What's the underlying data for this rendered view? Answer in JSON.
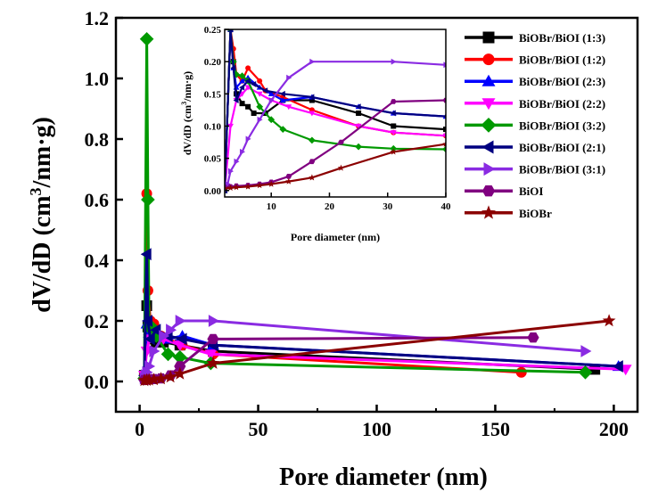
{
  "chart_data": [
    {
      "id": "main",
      "type": "line",
      "xlabel": "Pore diameter (nm)",
      "ylabel_main": "dV/dD (cm",
      "ylabel_sup": "3",
      "ylabel_tail": "/nm·g)",
      "xlim": [
        -10,
        210
      ],
      "ylim": [
        -0.1,
        1.2
      ],
      "xticks": [
        0,
        50,
        100,
        150,
        200
      ],
      "xtick_labels": [
        "0",
        "50",
        "100",
        "150",
        "200"
      ],
      "yticks": [
        0.0,
        0.2,
        0.4,
        0.6,
        0.8,
        1.0,
        1.2
      ],
      "ytick_labels": [
        "0.0",
        "0.2",
        "0.4",
        "0.6",
        "0.8",
        "1.0",
        "1.2"
      ],
      "legend_position": "right",
      "series": [
        {
          "name": "BiOBr/BiOI (1:3)",
          "color": "#000000",
          "marker": "square",
          "points": [
            [
              2,
              0.02
            ],
            [
              3,
              0.25
            ],
            [
              3.5,
              0.18
            ],
            [
              4,
              0.15
            ],
            [
              5,
              0.14
            ],
            [
              7,
              0.13
            ],
            [
              10,
              0.13
            ],
            [
              17,
              0.12
            ],
            [
              31,
              0.1
            ],
            [
              192,
              0.04
            ]
          ]
        },
        {
          "name": "BiOBr/BiOI (1:2)",
          "color": "#ff0000",
          "marker": "circle",
          "points": [
            [
              2,
              0.02
            ],
            [
              3,
              0.62
            ],
            [
              3.5,
              0.3
            ],
            [
              4.5,
              0.2
            ],
            [
              6,
              0.19
            ],
            [
              9,
              0.15
            ],
            [
              18,
              0.12
            ],
            [
              31,
              0.09
            ],
            [
              161,
              0.03
            ]
          ]
        },
        {
          "name": "BiOBr/BiOI (2:3)",
          "color": "#0000ff",
          "marker": "triangle-up",
          "points": [
            [
              2,
              0.02
            ],
            [
              3,
              0.19
            ],
            [
              4,
              0.16
            ],
            [
              5,
              0.17
            ],
            [
              7,
              0.15
            ],
            [
              12,
              0.14
            ],
            [
              18,
              0.15
            ],
            [
              31,
              0.12
            ],
            [
              202,
              0.05
            ]
          ]
        },
        {
          "name": "BiOBr/BiOI (2:2)",
          "color": "#ff00ff",
          "marker": "triangle-down",
          "points": [
            [
              2,
              0.02
            ],
            [
              3,
              0.1
            ],
            [
              4,
              0.14
            ],
            [
              6,
              0.16
            ],
            [
              10,
              0.14
            ],
            [
              17,
              0.12
            ],
            [
              30,
              0.09
            ],
            [
              205,
              0.04
            ]
          ]
        },
        {
          "name": "BiOBr/BiOI (3:2)",
          "color": "#009900",
          "marker": "diamond",
          "points": [
            [
              2,
              0.01
            ],
            [
              3,
              1.13
            ],
            [
              3.5,
              0.6
            ],
            [
              4,
              0.18
            ],
            [
              5,
              0.18
            ],
            [
              7,
              0.15
            ],
            [
              12,
              0.09
            ],
            [
              17,
              0.08
            ],
            [
              30,
              0.06
            ],
            [
              188,
              0.03
            ]
          ]
        },
        {
          "name": "BiOBr/BiOI (2:1)",
          "color": "#000080",
          "marker": "triangle-left",
          "points": [
            [
              2,
              0.02
            ],
            [
              3,
              0.42
            ],
            [
              3.5,
              0.2
            ],
            [
              4.5,
              0.14
            ],
            [
              7,
              0.17
            ],
            [
              12,
              0.15
            ],
            [
              18,
              0.14
            ],
            [
              31,
              0.12
            ],
            [
              202,
              0.05
            ]
          ]
        },
        {
          "name": "BiOBr/BiOI (3:1)",
          "color": "#8a2be2",
          "marker": "triangle-right",
          "points": [
            [
              2,
              0.01
            ],
            [
              2.5,
              0.02
            ],
            [
              3,
              0.03
            ],
            [
              4,
              0.05
            ],
            [
              6,
              0.1
            ],
            [
              10,
              0.15
            ],
            [
              13,
              0.17
            ],
            [
              17,
              0.2
            ],
            [
              31,
              0.2
            ],
            [
              188,
              0.1
            ]
          ]
        },
        {
          "name": "BiOI",
          "color": "#800080",
          "marker": "hexagon",
          "points": [
            [
              2,
              0.005
            ],
            [
              3,
              0.006
            ],
            [
              4,
              0.007
            ],
            [
              6,
              0.008
            ],
            [
              9,
              0.01
            ],
            [
              13,
              0.02
            ],
            [
              17,
              0.05
            ],
            [
              31,
              0.14
            ],
            [
              166,
              0.145
            ]
          ]
        },
        {
          "name": "BiOBr",
          "color": "#8b0000",
          "marker": "star",
          "points": [
            [
              2,
              0.003
            ],
            [
              3,
              0.004
            ],
            [
              4,
              0.005
            ],
            [
              6,
              0.006
            ],
            [
              9,
              0.009
            ],
            [
              13,
              0.015
            ],
            [
              17,
              0.025
            ],
            [
              31,
              0.06
            ],
            [
              198,
              0.2
            ]
          ]
        }
      ]
    },
    {
      "id": "inset",
      "type": "line",
      "xlabel": "Pore diameter (nm)",
      "ylabel": "dV/dD (cm",
      "ylabel_sup": "3",
      "ylabel_tail": "/nm·g)",
      "xlim": [
        2,
        40
      ],
      "ylim": [
        -0.01,
        0.25
      ],
      "xticks": [
        10,
        20,
        30,
        40
      ],
      "xtick_labels": [
        "10",
        "20",
        "30",
        "40"
      ],
      "yticks": [
        0.0,
        0.05,
        0.1,
        0.15,
        0.2,
        0.25
      ],
      "ytick_labels": [
        "0.00",
        "0.05",
        "0.10",
        "0.15",
        "0.20",
        "0.25"
      ],
      "series": [
        {
          "name": "BiOBr/BiOI (1:3)",
          "color": "#000000",
          "points": [
            [
              2,
              0.0
            ],
            [
              3,
              0.25
            ],
            [
              3.5,
              0.2
            ],
            [
              4,
              0.15
            ],
            [
              5,
              0.135
            ],
            [
              6,
              0.13
            ],
            [
              7,
              0.12
            ],
            [
              9,
              0.12
            ],
            [
              12,
              0.14
            ],
            [
              17,
              0.14
            ],
            [
              25,
              0.12
            ],
            [
              31,
              0.1
            ],
            [
              40,
              0.095
            ]
          ]
        },
        {
          "name": "BiOBr/BiOI (1:2)",
          "color": "#ff0000",
          "points": [
            [
              2,
              0.0
            ],
            [
              3,
              0.25
            ],
            [
              3.5,
              0.22
            ],
            [
              4,
              0.18
            ],
            [
              5,
              0.17
            ],
            [
              6,
              0.19
            ],
            [
              8,
              0.17
            ],
            [
              9,
              0.155
            ],
            [
              12,
              0.145
            ],
            [
              17,
              0.125
            ],
            [
              25,
              0.1
            ],
            [
              31,
              0.09
            ],
            [
              40,
              0.085
            ]
          ]
        },
        {
          "name": "BiOBr/BiOI (2:3)",
          "color": "#0000ff",
          "points": [
            [
              2,
              0.0
            ],
            [
              3,
              0.25
            ],
            [
              3.5,
              0.19
            ],
            [
              4,
              0.16
            ],
            [
              5,
              0.17
            ],
            [
              6,
              0.175
            ],
            [
              8,
              0.16
            ],
            [
              10,
              0.15
            ],
            [
              12,
              0.14
            ],
            [
              17,
              0.145
            ],
            [
              25,
              0.13
            ],
            [
              31,
              0.12
            ],
            [
              40,
              0.115
            ]
          ]
        },
        {
          "name": "BiOBr/BiOI (2:2)",
          "color": "#ff00ff",
          "points": [
            [
              2,
              0.0
            ],
            [
              3,
              0.1
            ],
            [
              4,
              0.14
            ],
            [
              5,
              0.15
            ],
            [
              6,
              0.16
            ],
            [
              8,
              0.15
            ],
            [
              10,
              0.14
            ],
            [
              13,
              0.13
            ],
            [
              17,
              0.12
            ],
            [
              25,
              0.1
            ],
            [
              31,
              0.09
            ],
            [
              40,
              0.085
            ]
          ]
        },
        {
          "name": "BiOBr/BiOI (3:2)",
          "color": "#009900",
          "points": [
            [
              2,
              0.0
            ],
            [
              3,
              0.25
            ],
            [
              3.5,
              0.2
            ],
            [
              4,
              0.18
            ],
            [
              5,
              0.178
            ],
            [
              6,
              0.17
            ],
            [
              8,
              0.13
            ],
            [
              10,
              0.11
            ],
            [
              12,
              0.095
            ],
            [
              17,
              0.078
            ],
            [
              25,
              0.068
            ],
            [
              31,
              0.065
            ],
            [
              40,
              0.064
            ]
          ]
        },
        {
          "name": "BiOBr/BiOI (2:1)",
          "color": "#000080",
          "points": [
            [
              2,
              0.0
            ],
            [
              3,
              0.25
            ],
            [
              3.5,
              0.19
            ],
            [
              4,
              0.14
            ],
            [
              5,
              0.16
            ],
            [
              6,
              0.17
            ],
            [
              7,
              0.165
            ],
            [
              9,
              0.155
            ],
            [
              12,
              0.15
            ],
            [
              17,
              0.145
            ],
            [
              25,
              0.13
            ],
            [
              31,
              0.12
            ],
            [
              40,
              0.115
            ]
          ]
        },
        {
          "name": "BiOBr/BiOI (3:1)",
          "color": "#8a2be2",
          "points": [
            [
              2,
              0.0
            ],
            [
              2.5,
              0.01
            ],
            [
              3,
              0.03
            ],
            [
              4,
              0.045
            ],
            [
              5,
              0.06
            ],
            [
              6,
              0.08
            ],
            [
              8,
              0.11
            ],
            [
              10,
              0.14
            ],
            [
              13,
              0.175
            ],
            [
              17,
              0.2
            ],
            [
              31,
              0.2
            ],
            [
              40,
              0.195
            ]
          ]
        },
        {
          "name": "BiOI",
          "color": "#800080",
          "points": [
            [
              2,
              0.005
            ],
            [
              3,
              0.006
            ],
            [
              4,
              0.007
            ],
            [
              6,
              0.008
            ],
            [
              8,
              0.01
            ],
            [
              10,
              0.013
            ],
            [
              13,
              0.022
            ],
            [
              17,
              0.045
            ],
            [
              22,
              0.075
            ],
            [
              31,
              0.138
            ],
            [
              40,
              0.14
            ]
          ]
        },
        {
          "name": "BiOBr",
          "color": "#8b0000",
          "points": [
            [
              2,
              0.003
            ],
            [
              3,
              0.004
            ],
            [
              4,
              0.005
            ],
            [
              6,
              0.006
            ],
            [
              8,
              0.008
            ],
            [
              10,
              0.01
            ],
            [
              13,
              0.014
            ],
            [
              17,
              0.02
            ],
            [
              22,
              0.035
            ],
            [
              31,
              0.06
            ],
            [
              40,
              0.072
            ]
          ]
        }
      ]
    }
  ]
}
